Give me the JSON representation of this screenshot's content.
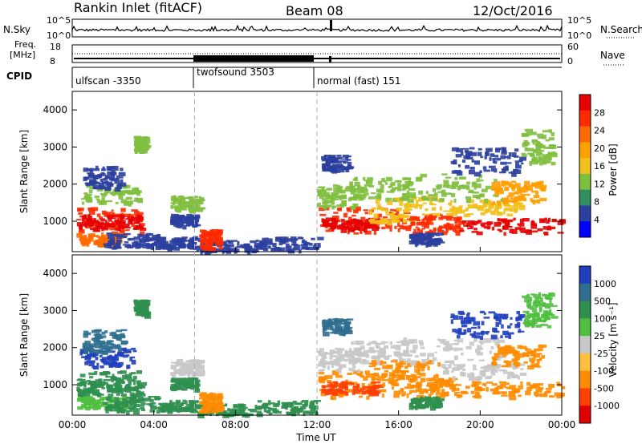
{
  "header": {
    "title": "Rankin Inlet (fitACF)",
    "beam": "Beam 08",
    "date": "12/Oct/2016"
  },
  "panels": {
    "nsky_label": "N.Sky",
    "nsky_ticks": [
      "10^5",
      "10^0"
    ],
    "nsearch_label": "N.Search",
    "nsearch_ticks": [
      "10^5",
      "10^0"
    ],
    "freq_label": "Freq.",
    "freq_unit": "[MHz]",
    "freq_ticks": [
      "18",
      "8"
    ],
    "nave_label": "Nave",
    "nave_ticks": [
      "60",
      "0"
    ],
    "cpid_label": "CPID",
    "cpid_segments": [
      "ulfscan -3350",
      "twofsound 3503",
      "normal (fast) 151"
    ]
  },
  "colors": {
    "power_scale": [
      "#0000ff",
      "#2b3f9e",
      "#2f8f5f",
      "#7fbf3f",
      "#f2c01a",
      "#ff9f00",
      "#ff6a00",
      "#ff2b00",
      "#e60000"
    ],
    "velocity_scale": [
      "#1f3fbf",
      "#2f6f8f",
      "#2f8f4f",
      "#4fbf3f",
      "#c8c8c8",
      "#ffc040",
      "#ff8c00",
      "#ff4000",
      "#e00000"
    ]
  },
  "chart_data": [
    {
      "type": "heatmap",
      "name": "power",
      "ylabel": "Slant Range [km]",
      "xlabel": "Time UT",
      "x_ticks": [
        "00:00",
        "04:00",
        "08:00",
        "12:00",
        "16:00",
        "20:00",
        "00:00"
      ],
      "y_ticks": [
        "1000",
        "2000",
        "3000",
        "4000"
      ],
      "ylim": [
        180,
        4500
      ],
      "colorbar_label": "Power [dB]",
      "colorbar_ticks": [
        "4",
        "8",
        "12",
        "16",
        "20",
        "24",
        "28"
      ]
    },
    {
      "type": "heatmap",
      "name": "velocity",
      "ylabel": "Slant Range [km]",
      "xlabel": "Time UT",
      "x_ticks": [
        "00:00",
        "04:00",
        "08:00",
        "12:00",
        "16:00",
        "20:00",
        "00:00"
      ],
      "y_ticks": [
        "1000",
        "2000",
        "3000",
        "4000"
      ],
      "ylim": [
        180,
        4500
      ],
      "colorbar_label": "Velocity [m s⁻¹]",
      "colorbar_ticks": [
        "1000",
        "500",
        "100",
        "25",
        "-25",
        "-100",
        "-500",
        "-1000"
      ]
    }
  ]
}
